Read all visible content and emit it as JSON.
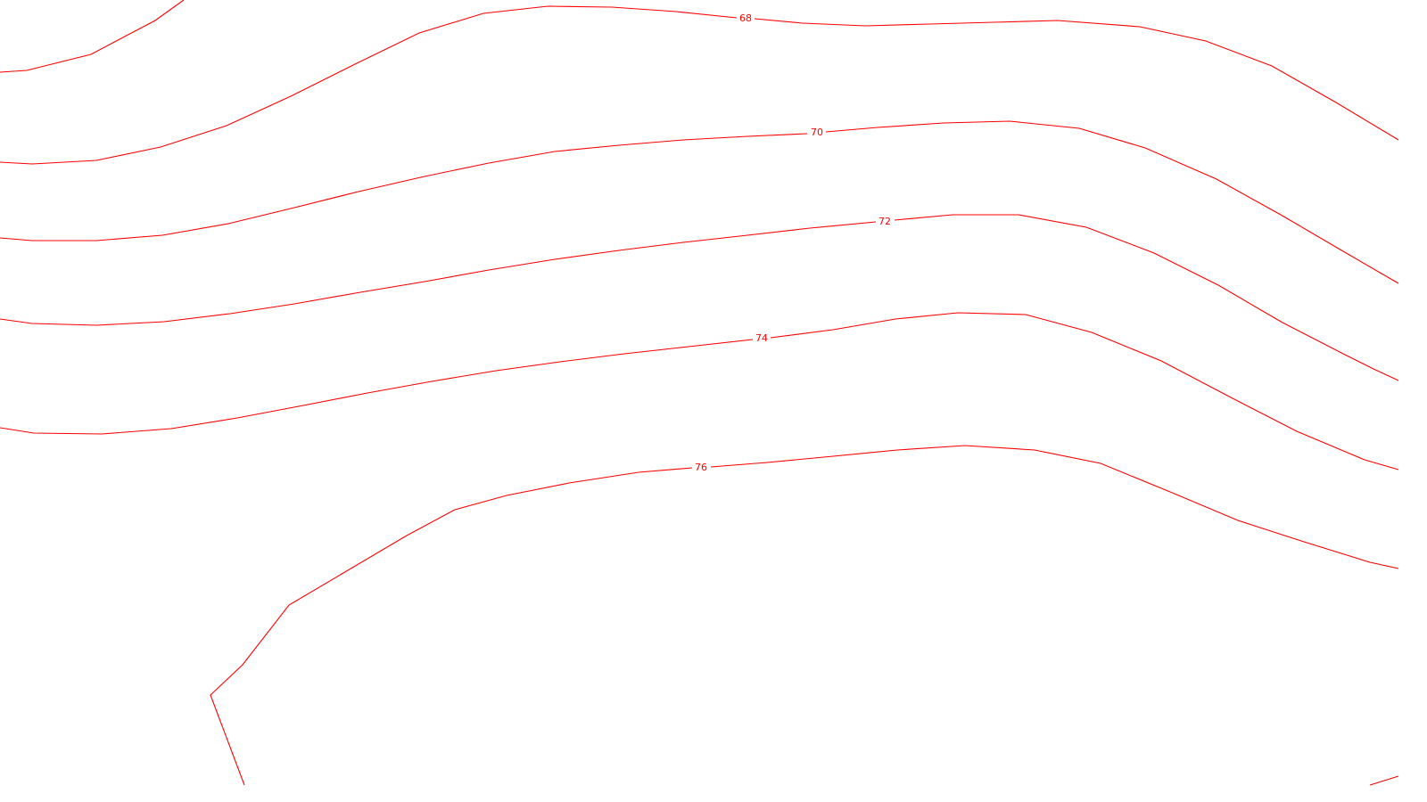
{
  "map": {
    "line_color": "#ff0000",
    "background": "#ffffff",
    "contour_interval": 2,
    "contours": [
      {
        "level": "unlabeled-top-left",
        "label": ""
      },
      {
        "level": 68,
        "label": "68"
      },
      {
        "level": 70,
        "label": "70"
      },
      {
        "level": 72,
        "label": "72"
      },
      {
        "level": 74,
        "label": "74"
      },
      {
        "level": 76,
        "label": "76"
      },
      {
        "level": "unlabeled-bottom-right",
        "label": ""
      }
    ]
  }
}
